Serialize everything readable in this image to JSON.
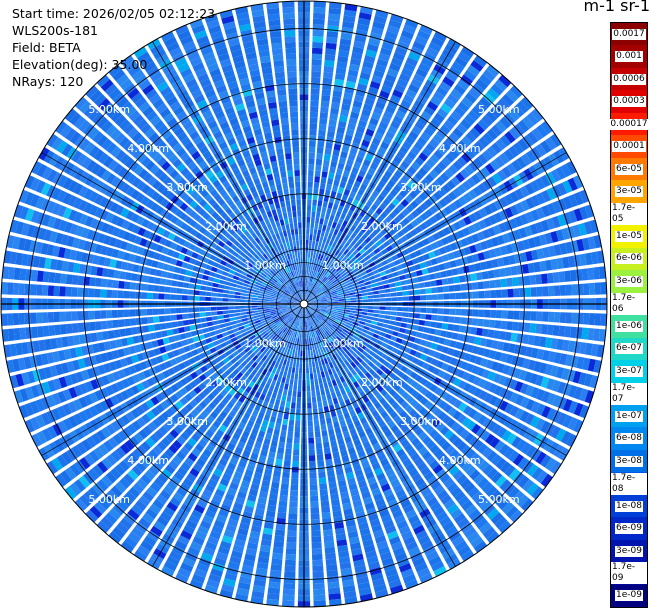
{
  "info": {
    "start_time": "Start time: 2026/02/05 02:12:23",
    "instrument": "WLS200s-181",
    "field": "Field: BETA",
    "elevation": "Elevation(deg): 35.00",
    "nrays": "NRays: 120"
  },
  "colorbar": {
    "title": "m-1 sr-1",
    "ticks": [
      "0.0017",
      "0.001",
      "0.0006",
      "0.0003",
      "0.00017",
      "0.0001",
      "6e-05",
      "3e-05",
      "1.7e-05",
      "1e-05",
      "6e-06",
      "3e-06",
      "1.7e-06",
      "1e-06",
      "6e-07",
      "3e-07",
      "1.7e-07",
      "1e-07",
      "6e-08",
      "3e-08",
      "1.7e-08",
      "1e-08",
      "6e-09",
      "3e-09",
      "1.7e-09",
      "1e-09"
    ],
    "colors": [
      "#8b0000",
      "#a30000",
      "#c40000",
      "#e00000",
      "#ff1a00",
      "#ff4a00",
      "#ff7a00",
      "#ffa500",
      "#ffd000",
      "#f2f200",
      "#c8f020",
      "#9bf040",
      "#6ee870",
      "#40e0a0",
      "#20d8c8",
      "#00d0e8",
      "#00b8f0",
      "#00a0f0",
      "#0088f0",
      "#0070e8",
      "#0058e0",
      "#0040d8",
      "#0028c8",
      "#0014b0",
      "#00089a",
      "#000080"
    ]
  },
  "chart_data": {
    "type": "heatmap",
    "projection": "polar (PPI scan)",
    "n_rays": 120,
    "max_range_km": 5.5,
    "range_rings_km": [
      1,
      2,
      3,
      4,
      5
    ],
    "range_labels": [
      "1.00km",
      "2.00km",
      "3.00km",
      "4.00km",
      "5.00km"
    ],
    "color_scale": "log",
    "value_min": 1e-09,
    "value_max": 0.0017,
    "dominant_value_range": [
      6e-09,
      6e-08
    ]
  }
}
